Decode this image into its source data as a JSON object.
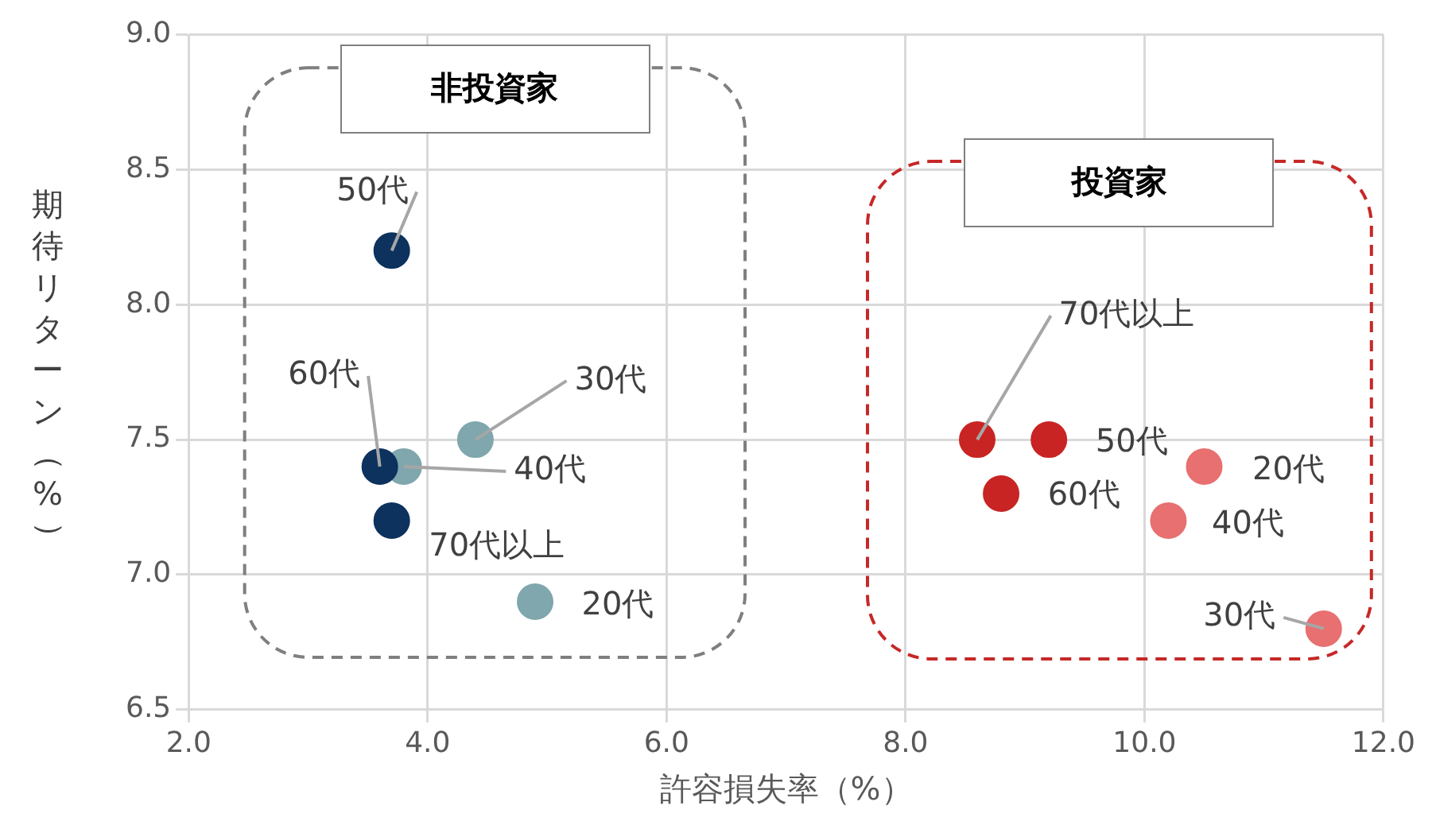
{
  "chart_data": {
    "type": "scatter",
    "xlabel": "許容損失率（%）",
    "ylabel": "期待リターン（%）",
    "xlim": [
      2,
      12
    ],
    "xticks": [
      {
        "value": 2,
        "label": "2.0"
      },
      {
        "value": 4,
        "label": "4.0"
      },
      {
        "value": 6,
        "label": "6.0"
      },
      {
        "value": 8,
        "label": "8.0"
      },
      {
        "value": 10,
        "label": "10.0"
      },
      {
        "value": 12,
        "label": "12.0"
      }
    ],
    "ylim": [
      6.5,
      9
    ],
    "yticks": [
      {
        "value": 6.5,
        "label": "6.5"
      },
      {
        "value": 7,
        "label": "7.0"
      },
      {
        "value": 7.5,
        "label": "7.5"
      },
      {
        "value": 8,
        "label": "8.0"
      },
      {
        "value": 8.5,
        "label": "8.5"
      },
      {
        "value": 9,
        "label": "9.0"
      }
    ],
    "grid": true,
    "legend": false,
    "marker": "circle",
    "series": [
      {
        "color": "#0d325e",
        "x": [
          3.7,
          3.6,
          3.7
        ],
        "values": [
          8.2,
          7.4,
          7.2
        ]
      },
      {
        "color": "#7fa7ad",
        "x": [
          4.4,
          3.8,
          4.9
        ],
        "values": [
          7.5,
          7.4,
          6.9
        ]
      },
      {
        "color": "#c92424",
        "x": [
          8.6,
          9.2,
          8.8
        ],
        "values": [
          7.5,
          7.5,
          7.3
        ]
      },
      {
        "color": "#e87070",
        "x": [
          10.5,
          10.2,
          11.5
        ],
        "values": [
          7.4,
          7.2,
          6.8
        ]
      }
    ],
    "annotations": [
      "非投資家",
      "投資家",
      {
        "text": "50代",
        "x": 3.7,
        "y": 8.2
      },
      {
        "text": "60代",
        "x": 3.6,
        "y": 7.4
      },
      {
        "text": "70代以上",
        "x": 3.7,
        "y": 7.2
      },
      {
        "text": "30代",
        "x": 4.4,
        "y": 7.5
      },
      {
        "text": "40代",
        "x": 3.8,
        "y": 7.4
      },
      {
        "text": "20代",
        "x": 4.9,
        "y": 6.9
      },
      {
        "text": "70代以上",
        "x": 8.6,
        "y": 7.5
      },
      {
        "text": "50代",
        "x": 9.2,
        "y": 7.5
      },
      {
        "text": "60代",
        "x": 8.8,
        "y": 7.3
      },
      {
        "text": "20代",
        "x": 10.5,
        "y": 7.4
      },
      {
        "text": "40代",
        "x": 10.2,
        "y": 7.2
      },
      {
        "text": "30代",
        "x": 11.5,
        "y": 6.8
      }
    ]
  }
}
